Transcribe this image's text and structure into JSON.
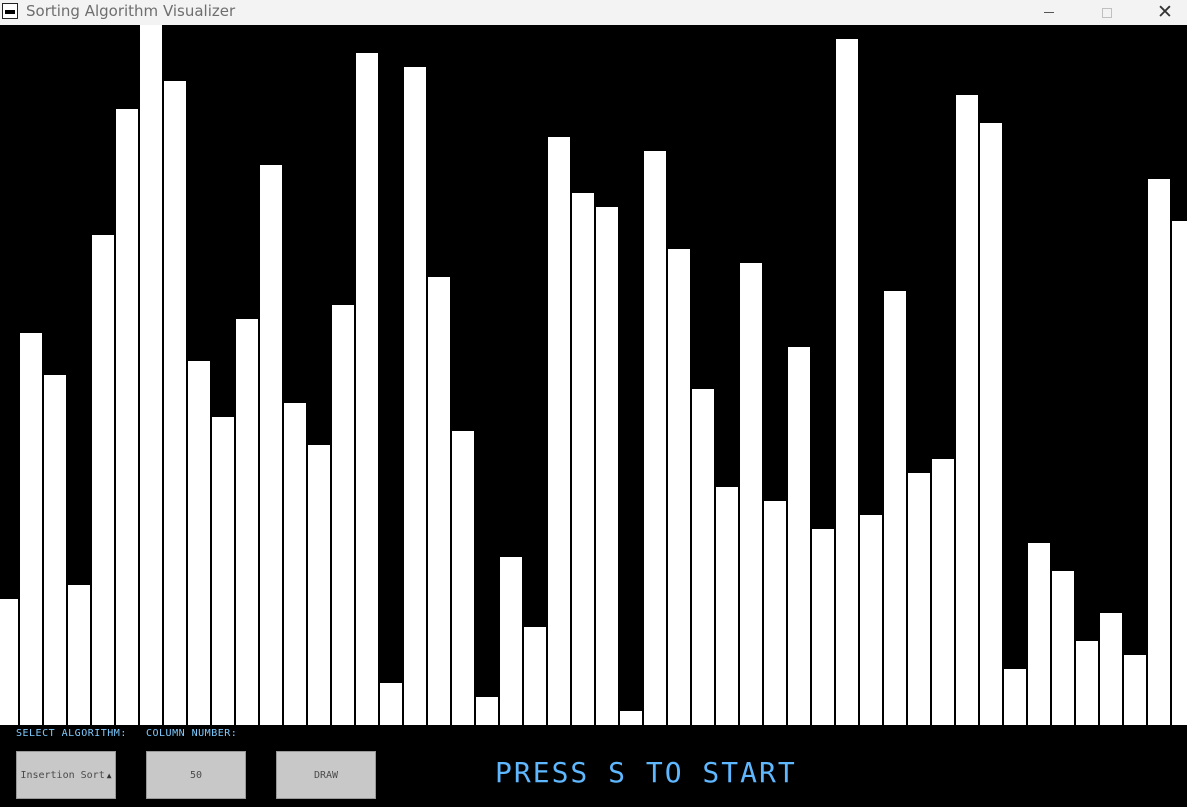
{
  "window": {
    "title": "Sorting Algorithm Visualizer",
    "icon": "app-icon",
    "controls": [
      "minimize-icon",
      "maximize-icon",
      "close-icon"
    ]
  },
  "visualizer": {
    "bar_values": [
      126,
      392,
      350,
      140,
      490,
      616,
      700,
      644,
      364,
      308,
      406,
      560,
      322,
      280,
      420,
      672,
      42,
      658,
      448,
      294,
      28,
      168,
      98,
      588,
      532,
      518,
      14,
      574,
      476,
      336,
      238,
      462,
      224,
      378,
      196,
      686,
      210,
      434,
      252,
      266,
      630,
      602,
      56,
      182,
      154,
      84,
      112,
      70,
      546,
      504
    ],
    "max_value": 700,
    "bar_color": "#ffffff",
    "background": "#000000"
  },
  "controls": {
    "algorithm_label": "SELECT ALGORITHM:",
    "column_label": "COLUMN NUMBER:",
    "algorithm_value": "Insertion Sort",
    "column_value": "50",
    "draw_label": "DRAW",
    "start_text": "PRESS S TO START",
    "accent_color": "#5fb8ff"
  }
}
